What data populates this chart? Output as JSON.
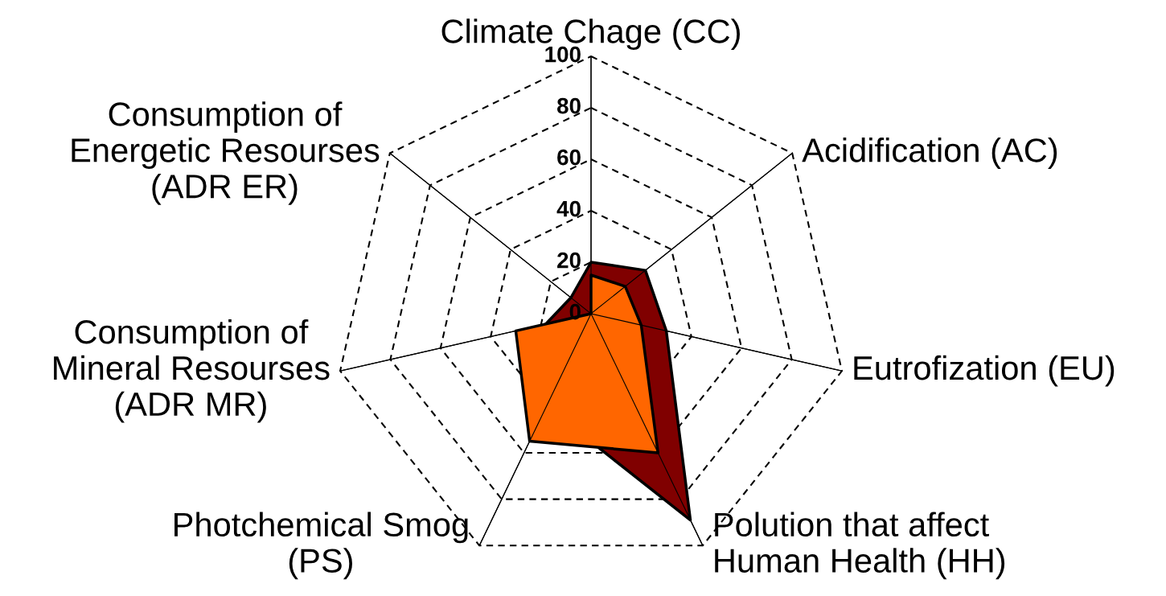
{
  "chart_data": {
    "type": "radar",
    "categories": [
      "Climate Chage (CC)",
      "Acidification (AC)",
      "Eutrofization (EU)",
      "Polution that affect\nHuman Health (HH)",
      "Photchemical Smog\n(PS)",
      "Consumption of\nMineral Resourses\n(ADR MR)",
      "Consumption of\nEnergetic Resourses\n(ADR ER)"
    ],
    "series": [
      {
        "color": "#800000",
        "values": [
          20,
          27,
          30,
          89,
          40,
          18,
          10
        ]
      },
      {
        "color": "#ff6600",
        "values": [
          15,
          17,
          20,
          60,
          55,
          30,
          0
        ]
      }
    ],
    "ylim": [
      0,
      100
    ],
    "yticks": [
      0,
      20,
      40,
      60,
      80,
      100
    ],
    "grid": true,
    "line_style": "solid",
    "marker": "none"
  }
}
